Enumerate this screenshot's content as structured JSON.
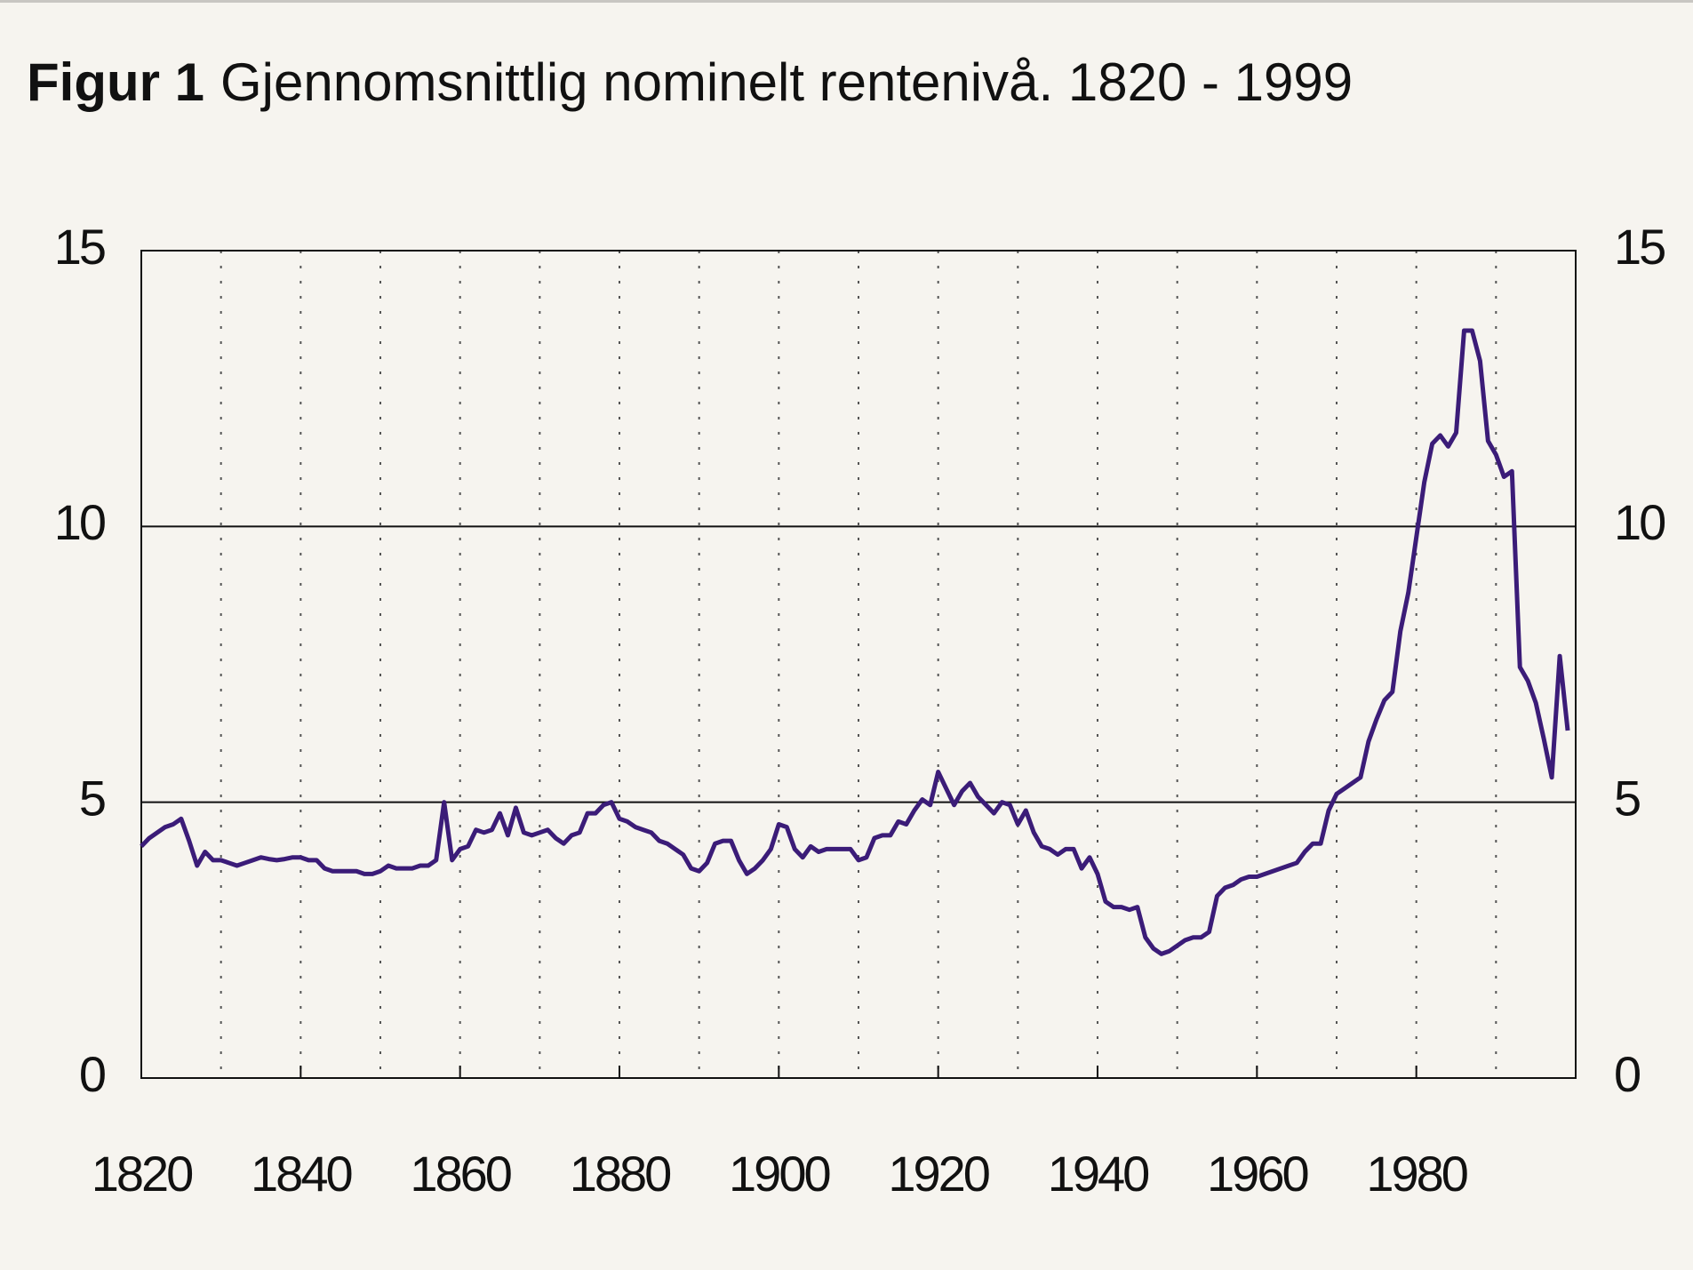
{
  "chart_data": {
    "type": "line",
    "title_label": "Figur 1",
    "title": "Gjennomsnittlig nominelt rentenivå. 1820 - 1999",
    "x": [
      1820,
      1821,
      1822,
      1823,
      1824,
      1825,
      1826,
      1827,
      1828,
      1829,
      1830,
      1831,
      1832,
      1833,
      1834,
      1835,
      1836,
      1837,
      1838,
      1839,
      1840,
      1841,
      1842,
      1843,
      1844,
      1845,
      1846,
      1847,
      1848,
      1849,
      1850,
      1851,
      1852,
      1853,
      1854,
      1855,
      1856,
      1857,
      1858,
      1859,
      1860,
      1861,
      1862,
      1863,
      1864,
      1865,
      1866,
      1867,
      1868,
      1869,
      1870,
      1871,
      1872,
      1873,
      1874,
      1875,
      1876,
      1877,
      1878,
      1879,
      1880,
      1881,
      1882,
      1883,
      1884,
      1885,
      1886,
      1887,
      1888,
      1889,
      1890,
      1891,
      1892,
      1893,
      1894,
      1895,
      1896,
      1897,
      1898,
      1899,
      1900,
      1901,
      1902,
      1903,
      1904,
      1905,
      1906,
      1907,
      1908,
      1909,
      1910,
      1911,
      1912,
      1913,
      1914,
      1915,
      1916,
      1917,
      1918,
      1919,
      1920,
      1921,
      1922,
      1923,
      1924,
      1925,
      1926,
      1927,
      1928,
      1929,
      1930,
      1931,
      1932,
      1933,
      1934,
      1935,
      1936,
      1937,
      1938,
      1939,
      1940,
      1941,
      1942,
      1943,
      1944,
      1945,
      1946,
      1947,
      1948,
      1949,
      1950,
      1951,
      1952,
      1953,
      1954,
      1955,
      1956,
      1957,
      1958,
      1959,
      1960,
      1961,
      1962,
      1963,
      1964,
      1965,
      1966,
      1967,
      1968,
      1969,
      1970,
      1971,
      1972,
      1973,
      1974,
      1975,
      1976,
      1977,
      1978,
      1979,
      1980,
      1981,
      1982,
      1983,
      1984,
      1985,
      1986,
      1987,
      1988,
      1989,
      1990,
      1991,
      1992,
      1993,
      1994,
      1995,
      1996,
      1997,
      1998,
      1999
    ],
    "series": [
      {
        "color": "#3b1c78",
        "values": [
          4.2,
          4.35,
          4.45,
          4.55,
          4.6,
          4.7,
          4.3,
          3.85,
          4.1,
          3.95,
          3.95,
          3.9,
          3.85,
          3.9,
          3.95,
          4.0,
          3.97,
          3.95,
          3.97,
          4.0,
          4.0,
          3.95,
          3.95,
          3.8,
          3.75,
          3.75,
          3.75,
          3.75,
          3.7,
          3.7,
          3.75,
          3.85,
          3.8,
          3.8,
          3.8,
          3.85,
          3.85,
          3.95,
          5.0,
          3.95,
          4.15,
          4.2,
          4.5,
          4.45,
          4.5,
          4.8,
          4.4,
          4.9,
          4.45,
          4.4,
          4.45,
          4.5,
          4.35,
          4.25,
          4.4,
          4.45,
          4.8,
          4.8,
          4.95,
          5.0,
          4.7,
          4.65,
          4.55,
          4.5,
          4.45,
          4.3,
          4.25,
          4.15,
          4.05,
          3.8,
          3.75,
          3.9,
          4.25,
          4.3,
          4.3,
          3.95,
          3.7,
          3.8,
          3.95,
          4.15,
          4.6,
          4.55,
          4.15,
          4.0,
          4.2,
          4.1,
          4.15,
          4.15,
          4.15,
          4.15,
          3.95,
          4.0,
          4.35,
          4.4,
          4.4,
          4.65,
          4.6,
          4.85,
          5.05,
          4.95,
          5.55,
          5.25,
          4.95,
          5.2,
          5.35,
          5.1,
          4.95,
          4.8,
          5.0,
          4.95,
          4.6,
          4.85,
          4.45,
          4.2,
          4.15,
          4.05,
          4.15,
          4.15,
          3.8,
          4.0,
          3.7,
          3.2,
          3.1,
          3.1,
          3.05,
          3.1,
          2.55,
          2.35,
          2.25,
          2.3,
          2.4,
          2.5,
          2.55,
          2.55,
          2.65,
          3.3,
          3.45,
          3.5,
          3.6,
          3.65,
          3.65,
          3.7,
          3.75,
          3.8,
          3.85,
          3.9,
          4.1,
          4.25,
          4.25,
          4.85,
          5.15,
          5.25,
          5.35,
          5.45,
          6.1,
          6.5,
          6.85,
          7.0,
          8.1,
          8.8,
          9.8,
          10.8,
          11.5,
          11.65,
          11.45,
          11.7,
          13.55,
          13.55,
          13.0,
          11.55,
          11.3,
          10.9,
          11.0,
          7.45,
          7.2,
          6.8,
          6.15,
          5.45,
          7.65,
          6.3
        ]
      }
    ],
    "xlim": [
      1820,
      2000
    ],
    "xticks": [
      1820,
      1840,
      1860,
      1880,
      1900,
      1920,
      1940,
      1960,
      1980
    ],
    "xgrid": [
      1830,
      1840,
      1850,
      1860,
      1870,
      1880,
      1890,
      1900,
      1910,
      1920,
      1930,
      1940,
      1950,
      1960,
      1970,
      1980,
      1990
    ],
    "ylim": [
      0,
      15
    ],
    "yticks": [
      0,
      5,
      10,
      15
    ],
    "y2lim": [
      0,
      15
    ],
    "y2ticks": [
      0,
      5,
      10,
      15
    ]
  }
}
